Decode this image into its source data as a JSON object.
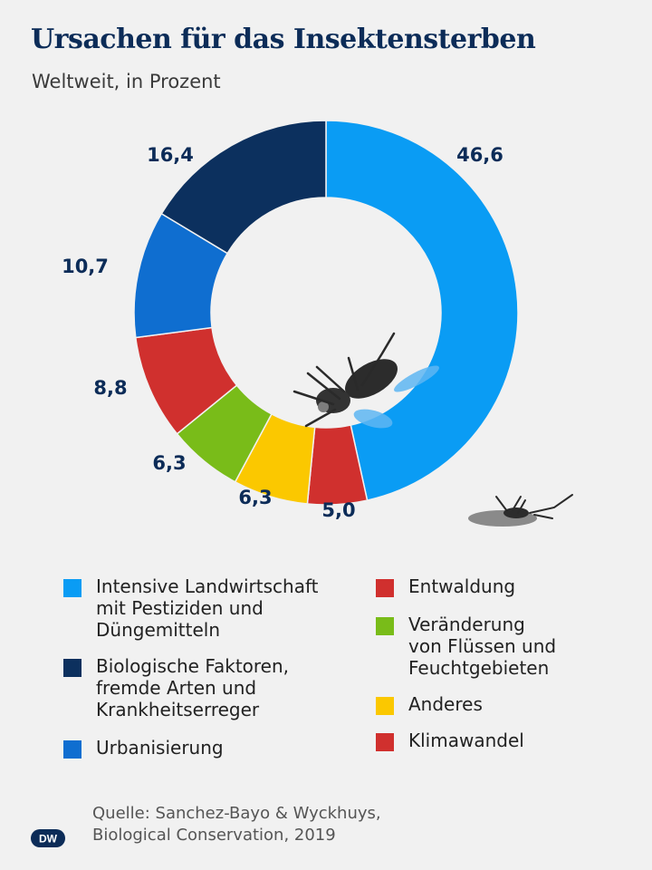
{
  "header": {
    "title": "Ursachen für das Insektensterben",
    "subtitle": "Weltweit, in Prozent"
  },
  "chart_data": {
    "type": "pie",
    "variant": "donut",
    "title": "Ursachen für das Insektensterben",
    "subtitle": "Weltweit, in Prozent",
    "categories": [
      "Intensive Landwirtschaft\nmit Pestiziden und\nDüngemitteln",
      "Klimawandel",
      "Anderes",
      "Veränderung\nvon Flüssen und\nFeuchtgebieten",
      "Entwaldung",
      "Urbanisierung",
      "Biologische Faktoren,\nfremde Arten und\nKrankheitserreger"
    ],
    "values": [
      46.6,
      5.0,
      6.3,
      6.3,
      8.8,
      10.7,
      16.4
    ],
    "value_labels": [
      "46,6",
      "5,0",
      "6,3",
      "6,3",
      "8,8",
      "10,7",
      "16,4"
    ],
    "colors": [
      "#0a9cf4",
      "#d0302e",
      "#fbc800",
      "#79bc19",
      "#d0302e",
      "#0f6ed0",
      "#0c305e"
    ],
    "legend_placement": "bottom"
  },
  "legend": [
    {
      "label": "Intensive Landwirtschaft\nmit Pestiziden und\nDüngemitteln",
      "color": "#0a9cf4"
    },
    {
      "label": "Biologische Faktoren,\nfremde Arten und\nKrankheitserreger",
      "color": "#0c305e"
    },
    {
      "label": "Urbanisierung",
      "color": "#0f6ed0"
    },
    {
      "label": "Entwaldung",
      "color": "#d0302e"
    },
    {
      "label": "Veränderung\nvon Flüssen und\nFeuchtgebieten",
      "color": "#79bc19"
    },
    {
      "label": "Anderes",
      "color": "#fbc800"
    },
    {
      "label": "Klimawandel",
      "color": "#d0302e"
    }
  ],
  "footer": {
    "source": "Quelle: Sanchez-Bayo & Wyckhuys,\nBiological Conservation, 2019",
    "logo": "DW"
  },
  "decorations": [
    "fly-icon",
    "dead-insect-icon"
  ]
}
